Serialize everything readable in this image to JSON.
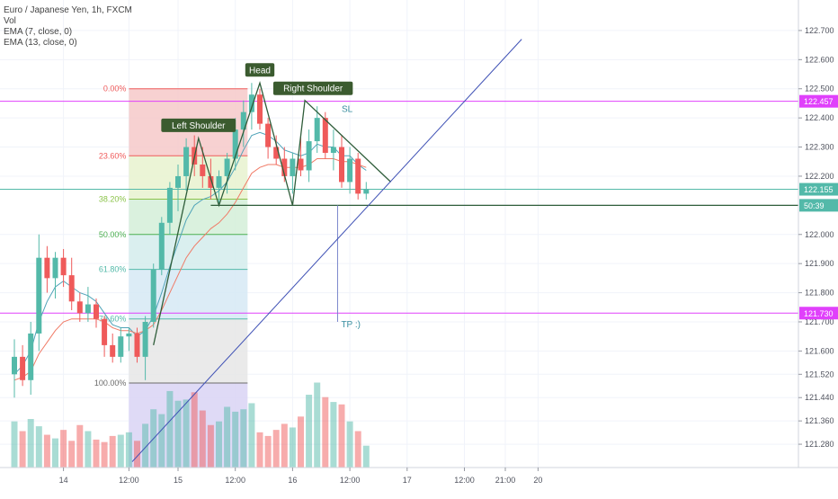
{
  "header": {
    "symbol": "Euro / Japanese Yen, 1h, FXCM",
    "vol": "Vol",
    "ema7": "EMA (7, close, 0)",
    "ema13": "EMA (13, close, 0)"
  },
  "colors": {
    "up": "#53b9a9",
    "down": "#ef5a5a",
    "ema_fast": "#4fa3b8",
    "ema_slow": "#f07a66",
    "pattern": "#2f5d3a",
    "trendline": "#3f51b5",
    "magenta": "#e040fb",
    "fib_base": "#6b6b6b"
  },
  "price_axis": {
    "min": 121.2,
    "max": 122.78,
    "ticks": [
      "122.700",
      "122.600",
      "122.500",
      "122.400",
      "122.300",
      "122.200",
      "122.000",
      "121.900",
      "121.800",
      "121.700",
      "121.600",
      "121.520",
      "121.440",
      "121.360",
      "121.280"
    ],
    "badges": [
      {
        "label": "122.457",
        "price": 122.457,
        "color": "#e040fb"
      },
      {
        "label": "122.155",
        "price": 122.155,
        "color": "#53b9a9"
      },
      {
        "label": "50:39",
        "price": 122.1,
        "color": "#53b9a9"
      },
      {
        "label": "121.730",
        "price": 121.73,
        "color": "#e040fb"
      }
    ]
  },
  "time_axis": {
    "labels": [
      {
        "label": "14",
        "bar": 6
      },
      {
        "label": "12:00",
        "bar": 14
      },
      {
        "label": "15",
        "bar": 20
      },
      {
        "label": "12:00",
        "bar": 27
      },
      {
        "label": "16",
        "bar": 34
      },
      {
        "label": "12:00",
        "bar": 41
      },
      {
        "label": "17",
        "bar": 48
      },
      {
        "label": "12:00",
        "bar": 55
      },
      {
        "label": "21:00",
        "bar": 60
      },
      {
        "label": "20",
        "bar": 64
      }
    ]
  },
  "chart_data": {
    "type": "candlestick",
    "title": "Euro / Japanese Yen, 1h, FXCM",
    "ylim": [
      121.2,
      122.78
    ],
    "candles": [
      {
        "o": 121.52,
        "h": 121.64,
        "l": 121.44,
        "c": 121.58
      },
      {
        "o": 121.58,
        "h": 121.62,
        "l": 121.48,
        "c": 121.5
      },
      {
        "o": 121.5,
        "h": 121.7,
        "l": 121.45,
        "c": 121.66
      },
      {
        "o": 121.66,
        "h": 122.0,
        "l": 121.6,
        "c": 121.92
      },
      {
        "o": 121.92,
        "h": 121.96,
        "l": 121.8,
        "c": 121.85
      },
      {
        "o": 121.85,
        "h": 121.94,
        "l": 121.78,
        "c": 121.92
      },
      {
        "o": 121.92,
        "h": 121.95,
        "l": 121.82,
        "c": 121.86
      },
      {
        "o": 121.86,
        "h": 121.92,
        "l": 121.74,
        "c": 121.77
      },
      {
        "o": 121.77,
        "h": 121.8,
        "l": 121.7,
        "c": 121.73
      },
      {
        "o": 121.73,
        "h": 121.82,
        "l": 121.7,
        "c": 121.76
      },
      {
        "o": 121.76,
        "h": 121.78,
        "l": 121.68,
        "c": 121.71
      },
      {
        "o": 121.71,
        "h": 121.72,
        "l": 121.58,
        "c": 121.62
      },
      {
        "o": 121.62,
        "h": 121.66,
        "l": 121.56,
        "c": 121.58
      },
      {
        "o": 121.58,
        "h": 121.68,
        "l": 121.56,
        "c": 121.65
      },
      {
        "o": 121.65,
        "h": 121.68,
        "l": 121.6,
        "c": 121.66
      },
      {
        "o": 121.66,
        "h": 121.68,
        "l": 121.56,
        "c": 121.58
      },
      {
        "o": 121.58,
        "h": 121.72,
        "l": 121.5,
        "c": 121.7
      },
      {
        "o": 121.7,
        "h": 121.9,
        "l": 121.68,
        "c": 121.88
      },
      {
        "o": 121.88,
        "h": 122.06,
        "l": 121.86,
        "c": 122.04
      },
      {
        "o": 122.04,
        "h": 122.18,
        "l": 122.0,
        "c": 122.16
      },
      {
        "o": 122.16,
        "h": 122.24,
        "l": 122.08,
        "c": 122.2
      },
      {
        "o": 122.2,
        "h": 122.33,
        "l": 122.15,
        "c": 122.3
      },
      {
        "o": 122.3,
        "h": 122.34,
        "l": 122.2,
        "c": 122.24
      },
      {
        "o": 122.24,
        "h": 122.3,
        "l": 122.16,
        "c": 122.2
      },
      {
        "o": 122.2,
        "h": 122.26,
        "l": 122.12,
        "c": 122.16
      },
      {
        "o": 122.16,
        "h": 122.22,
        "l": 122.1,
        "c": 122.2
      },
      {
        "o": 122.2,
        "h": 122.28,
        "l": 122.14,
        "c": 122.26
      },
      {
        "o": 122.26,
        "h": 122.4,
        "l": 122.22,
        "c": 122.36
      },
      {
        "o": 122.36,
        "h": 122.46,
        "l": 122.3,
        "c": 122.42
      },
      {
        "o": 122.42,
        "h": 122.52,
        "l": 122.36,
        "c": 122.48
      },
      {
        "o": 122.48,
        "h": 122.5,
        "l": 122.36,
        "c": 122.38
      },
      {
        "o": 122.38,
        "h": 122.4,
        "l": 122.26,
        "c": 122.3
      },
      {
        "o": 122.3,
        "h": 122.34,
        "l": 122.24,
        "c": 122.26
      },
      {
        "o": 122.26,
        "h": 122.3,
        "l": 122.18,
        "c": 122.2
      },
      {
        "o": 122.2,
        "h": 122.28,
        "l": 122.14,
        "c": 122.26
      },
      {
        "o": 122.26,
        "h": 122.34,
        "l": 122.2,
        "c": 122.22
      },
      {
        "o": 122.22,
        "h": 122.36,
        "l": 122.18,
        "c": 122.32
      },
      {
        "o": 122.32,
        "h": 122.44,
        "l": 122.28,
        "c": 122.4
      },
      {
        "o": 122.4,
        "h": 122.42,
        "l": 122.26,
        "c": 122.28
      },
      {
        "o": 122.28,
        "h": 122.36,
        "l": 122.22,
        "c": 122.3
      },
      {
        "o": 122.3,
        "h": 122.34,
        "l": 122.16,
        "c": 122.18
      },
      {
        "o": 122.18,
        "h": 122.3,
        "l": 122.14,
        "c": 122.26
      },
      {
        "o": 122.26,
        "h": 122.28,
        "l": 122.12,
        "c": 122.14
      },
      {
        "o": 122.14,
        "h": 122.18,
        "l": 122.12,
        "c": 122.155
      }
    ],
    "volume_scale_max": 100,
    "volume": [
      38,
      30,
      40,
      34,
      27,
      24,
      31,
      22,
      35,
      30,
      23,
      21,
      26,
      27,
      29,
      22,
      36,
      48,
      44,
      63,
      55,
      56,
      62,
      47,
      35,
      38,
      50,
      46,
      48,
      53,
      29,
      26,
      31,
      36,
      33,
      42,
      60,
      70,
      58,
      54,
      52,
      38,
      30,
      18
    ],
    "ema_fast": [
      121.52,
      121.55,
      121.6,
      121.7,
      121.77,
      121.82,
      121.84,
      121.82,
      121.8,
      121.79,
      121.77,
      121.73,
      121.69,
      121.68,
      121.68,
      121.65,
      121.67,
      121.72,
      121.8,
      121.89,
      121.97,
      122.05,
      122.1,
      122.12,
      122.13,
      122.15,
      122.18,
      122.23,
      122.29,
      122.34,
      122.35,
      122.34,
      122.32,
      122.29,
      122.28,
      122.27,
      122.28,
      122.31,
      122.3,
      122.3,
      122.27,
      122.27,
      122.24,
      122.22
    ],
    "ema_slow": [
      121.5,
      121.51,
      121.53,
      121.59,
      121.63,
      121.67,
      121.7,
      121.71,
      121.71,
      121.71,
      121.71,
      121.7,
      121.68,
      121.67,
      121.67,
      121.66,
      121.67,
      121.69,
      121.74,
      121.8,
      121.86,
      121.92,
      121.96,
      121.99,
      122.02,
      122.04,
      122.07,
      122.11,
      122.16,
      122.21,
      122.23,
      122.24,
      122.24,
      122.23,
      122.23,
      122.23,
      122.24,
      122.26,
      122.26,
      122.26,
      122.25,
      122.25,
      122.24,
      122.23
    ],
    "fibonacci": {
      "x_start_bar": 14,
      "x_end_bar": 28.5,
      "levels": [
        {
          "label": "0.00%",
          "price": 122.5,
          "fill": "#f6c9c9",
          "line": "#ef5a5a"
        },
        {
          "label": "23.60%",
          "price": 122.27,
          "fill": "#e8f2cf",
          "line": "#ef5a5a"
        },
        {
          "label": "38.20%",
          "price": 122.121,
          "fill": "#d4eed8",
          "line": "#8bc34a"
        },
        {
          "label": "50.00%",
          "price": 122.0,
          "fill": "#d3ecec",
          "line": "#4caf50"
        },
        {
          "label": "61.80%",
          "price": 121.88,
          "fill": "#d6e9f5",
          "line": "#53b9a9"
        },
        {
          "label": "78.60%",
          "price": 121.71,
          "fill": "#e6e6e6",
          "line": "#53b9a9"
        },
        {
          "label": "100.00%",
          "price": 121.49,
          "fill": "#d9d4f5",
          "line": "#6b6b6b"
        }
      ]
    },
    "pattern": {
      "labels": [
        "Left Shoulder",
        "Head",
        "Right Shoulder"
      ],
      "points": [
        {
          "bar": 17,
          "price": 121.62
        },
        {
          "bar": 22.5,
          "price": 122.33
        },
        {
          "bar": 25,
          "price": 122.1
        },
        {
          "bar": 30,
          "price": 122.52
        },
        {
          "bar": 34,
          "price": 122.1
        },
        {
          "bar": 35.5,
          "price": 122.46
        },
        {
          "bar": 46,
          "price": 122.18
        }
      ],
      "neckline": {
        "from_bar": 24,
        "to_bar": 70,
        "price": 122.1
      },
      "sl_label": "SL",
      "tp_label": "TP :)",
      "tp": {
        "bar": 39.5,
        "from_price": 122.1,
        "to_price": 121.7
      }
    },
    "horizontal_lines": [
      {
        "price": 122.457,
        "color": "#e040fb"
      },
      {
        "price": 122.155,
        "color": "#53b9a9"
      },
      {
        "price": 121.73,
        "color": "#e040fb"
      }
    ],
    "trendline": {
      "from": {
        "bar": 14.4,
        "price": 121.22
      },
      "to": {
        "bar": 62,
        "price": 122.67
      }
    }
  }
}
